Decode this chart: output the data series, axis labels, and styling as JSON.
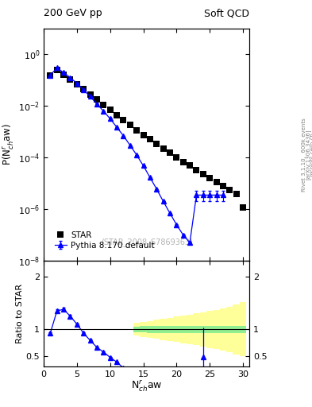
{
  "title_left": "200 GeV pp",
  "title_right": "Soft QCD",
  "right_label_1": "Rivet 3.1.10,  600k events",
  "right_label_2": "[arXiv:1306.3436]",
  "right_label_3": "mcplots.cern.ch",
  "xlabel": "N$^{r}_{ch}$aw",
  "ylabel_main": "P(N$^{r}_{ch}$aw)",
  "ylabel_ratio": "Ratio to STAR",
  "watermark": "(STAR_2008_S7869363)",
  "legend_label_star": "STAR",
  "legend_label_pythia": "Pythia 8.170 default",
  "star_x": [
    1,
    2,
    3,
    4,
    5,
    6,
    7,
    8,
    9,
    10,
    11,
    12,
    13,
    14,
    15,
    16,
    17,
    18,
    19,
    20,
    21,
    22,
    23,
    24,
    25,
    26,
    27,
    28,
    29,
    30
  ],
  "star_y": [
    0.155,
    0.245,
    0.165,
    0.105,
    0.068,
    0.044,
    0.028,
    0.018,
    0.011,
    0.007,
    0.0044,
    0.0028,
    0.0018,
    0.00115,
    0.00075,
    0.0005,
    0.00033,
    0.00022,
    0.00015,
    0.0001,
    6.8e-05,
    4.8e-05,
    3.3e-05,
    2.3e-05,
    1.6e-05,
    1.1e-05,
    8e-06,
    5.5e-06,
    3.8e-06,
    1.2e-06
  ],
  "pythia_x": [
    1,
    2,
    3,
    4,
    5,
    6,
    7,
    8,
    9,
    10,
    11,
    12,
    13,
    14,
    15,
    16,
    17,
    18,
    19,
    20,
    21,
    22,
    23,
    24,
    25,
    26,
    27
  ],
  "pythia_y": [
    0.155,
    0.3,
    0.195,
    0.125,
    0.075,
    0.042,
    0.023,
    0.012,
    0.0063,
    0.0032,
    0.0015,
    0.0007,
    0.0003,
    0.000125,
    4.8e-05,
    1.7e-05,
    6e-06,
    2e-06,
    7e-07,
    2.5e-07,
    1e-07,
    5e-08,
    3.5e-06,
    3.5e-06,
    3.5e-06,
    3.5e-06,
    3.5e-06
  ],
  "pythia_yerr_lo": [
    0.003,
    0.004,
    0.003,
    0.002,
    0.001,
    0.0006,
    0.0003,
    0.00015,
    7e-05,
    3.5e-05,
    1.5e-05,
    6e-06,
    2.5e-06,
    1e-06,
    4e-07,
    1.5e-07,
    5e-08,
    2e-08,
    1e-08,
    5e-09,
    3e-09,
    2e-09,
    1.5e-06,
    1.5e-06,
    1.5e-06,
    1.5e-06,
    1.5e-06
  ],
  "pythia_yerr_hi": [
    0.003,
    0.004,
    0.003,
    0.002,
    0.001,
    0.0006,
    0.0003,
    0.00015,
    7e-05,
    3.5e-05,
    1.5e-05,
    6e-06,
    2.5e-06,
    1e-06,
    4e-07,
    1.5e-07,
    5e-08,
    2e-08,
    1e-08,
    5e-09,
    3e-09,
    2e-09,
    1.5e-06,
    1.5e-06,
    1.5e-06,
    1.5e-06,
    1.5e-06
  ],
  "ratio_x": [
    1,
    2,
    3,
    4,
    5,
    6,
    7,
    8,
    9,
    10,
    11,
    12,
    13,
    24
  ],
  "ratio_y": [
    0.93,
    1.35,
    1.38,
    1.25,
    1.1,
    0.93,
    0.79,
    0.66,
    0.57,
    0.47,
    0.38,
    0.27,
    0.18,
    0.48
  ],
  "ratio_yerr_lo": [
    0.02,
    0.03,
    0.025,
    0.02,
    0.015,
    0.015,
    0.012,
    0.01,
    0.01,
    0.01,
    0.01,
    0.01,
    0.01,
    0.48
  ],
  "ratio_yerr_hi": [
    0.02,
    0.03,
    0.025,
    0.02,
    0.015,
    0.015,
    0.012,
    0.01,
    0.01,
    0.01,
    0.01,
    0.01,
    0.01,
    0.55
  ],
  "band_edges": [
    13.5,
    14.5,
    15.5,
    16.5,
    17.5,
    18.5,
    19.5,
    20.5,
    21.5,
    22.5,
    23.5,
    24.5,
    25.5,
    26.5,
    27.5,
    28.5,
    29.5,
    30.5
  ],
  "band_green_lo": [
    0.95,
    0.94,
    0.93,
    0.93,
    0.93,
    0.93,
    0.93,
    0.93,
    0.93,
    0.93,
    0.93,
    0.93,
    0.93,
    0.93,
    0.93,
    0.93,
    0.93
  ],
  "band_green_hi": [
    1.05,
    1.06,
    1.07,
    1.07,
    1.07,
    1.07,
    1.07,
    1.07,
    1.07,
    1.07,
    1.07,
    1.07,
    1.07,
    1.07,
    1.07,
    1.07,
    1.07
  ],
  "band_yellow_lo": [
    0.88,
    0.86,
    0.84,
    0.82,
    0.8,
    0.78,
    0.76,
    0.74,
    0.72,
    0.7,
    0.68,
    0.65,
    0.63,
    0.6,
    0.57,
    0.53,
    0.49
  ],
  "band_yellow_hi": [
    1.12,
    1.14,
    1.16,
    1.18,
    1.2,
    1.22,
    1.24,
    1.26,
    1.28,
    1.3,
    1.32,
    1.35,
    1.37,
    1.4,
    1.43,
    1.47,
    1.51
  ],
  "star_color": "black",
  "pythia_color": "blue",
  "xlim": [
    0,
    31
  ],
  "ylim_main": [
    1e-08,
    10
  ],
  "ylim_ratio": [
    0.3,
    2.3
  ],
  "ratio_yticks": [
    0.5,
    1.0,
    2.0
  ],
  "green_color": "#90EE90",
  "yellow_color": "#FFFF99"
}
